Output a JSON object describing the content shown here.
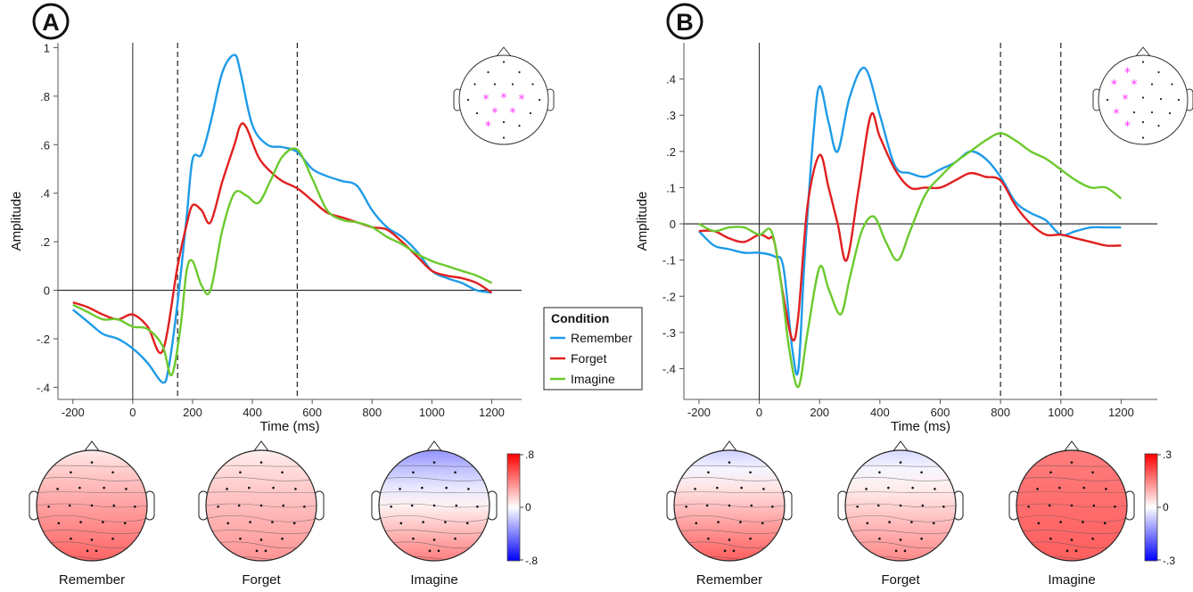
{
  "chart_data": [
    {
      "panel": "A",
      "type": "line",
      "xlabel": "Time (ms)",
      "ylabel": "Amplitude",
      "xlim": [
        -250,
        1300
      ],
      "ylim": [
        -0.45,
        1.02
      ],
      "xticks": [
        -200,
        0,
        200,
        400,
        600,
        800,
        1000,
        1200
      ],
      "xtick_labels": [
        "-200",
        "0",
        "200",
        "400",
        "600",
        "800",
        "1000",
        "1200"
      ],
      "yticks": [
        -0.4,
        -0.2,
        0,
        0.2,
        0.4,
        0.6,
        0.8,
        1
      ],
      "ytick_labels": [
        "-.4",
        "-.2",
        "0",
        ".2",
        ".4",
        ".6",
        ".8",
        "1"
      ],
      "window_ms": [
        150,
        550
      ],
      "series": [
        {
          "name": "Remember",
          "color": "#1E9BE8",
          "x": [
            -200,
            -150,
            -100,
            -50,
            0,
            50,
            100,
            120,
            150,
            180,
            200,
            230,
            260,
            300,
            340,
            360,
            400,
            450,
            500,
            550,
            600,
            650,
            700,
            750,
            800,
            850,
            900,
            950,
            1000,
            1050,
            1100,
            1150,
            1200
          ],
          "values": [
            -0.08,
            -0.13,
            -0.18,
            -0.2,
            -0.24,
            -0.3,
            -0.38,
            -0.32,
            -0.05,
            0.3,
            0.54,
            0.56,
            0.69,
            0.9,
            0.97,
            0.9,
            0.68,
            0.6,
            0.59,
            0.57,
            0.5,
            0.47,
            0.45,
            0.43,
            0.33,
            0.26,
            0.22,
            0.16,
            0.08,
            0.05,
            0.03,
            0.0,
            -0.01
          ]
        },
        {
          "name": "Forget",
          "color": "#E02020",
          "x": [
            -200,
            -150,
            -100,
            -50,
            0,
            50,
            100,
            150,
            180,
            200,
            230,
            260,
            300,
            340,
            360,
            380,
            420,
            460,
            500,
            550,
            600,
            650,
            700,
            750,
            800,
            850,
            900,
            950,
            1000,
            1050,
            1100,
            1150,
            1200
          ],
          "values": [
            -0.05,
            -0.07,
            -0.1,
            -0.12,
            -0.1,
            -0.15,
            -0.25,
            0.1,
            0.27,
            0.35,
            0.33,
            0.28,
            0.45,
            0.6,
            0.68,
            0.67,
            0.55,
            0.49,
            0.45,
            0.42,
            0.37,
            0.32,
            0.3,
            0.28,
            0.26,
            0.25,
            0.2,
            0.14,
            0.08,
            0.06,
            0.05,
            0.03,
            -0.01
          ]
        },
        {
          "name": "Imagine",
          "color": "#6CC92E",
          "x": [
            -200,
            -150,
            -100,
            -50,
            0,
            50,
            100,
            130,
            160,
            180,
            200,
            230,
            260,
            300,
            340,
            380,
            420,
            460,
            500,
            550,
            600,
            650,
            700,
            750,
            800,
            850,
            900,
            950,
            1000,
            1050,
            1100,
            1150,
            1200
          ],
          "values": [
            -0.06,
            -0.09,
            -0.12,
            -0.12,
            -0.15,
            -0.16,
            -0.23,
            -0.35,
            -0.15,
            0.08,
            0.12,
            0.02,
            0.0,
            0.25,
            0.4,
            0.39,
            0.36,
            0.45,
            0.55,
            0.58,
            0.46,
            0.33,
            0.29,
            0.28,
            0.26,
            0.22,
            0.19,
            0.15,
            0.12,
            0.1,
            0.08,
            0.06,
            0.03
          ]
        }
      ]
    },
    {
      "panel": "B",
      "type": "line",
      "xlabel": "Time (ms)",
      "ylabel": "Amplitude",
      "xlim": [
        -250,
        1320
      ],
      "ylim": [
        -0.485,
        0.5
      ],
      "xticks": [
        -200,
        0,
        200,
        400,
        600,
        800,
        1000,
        1200
      ],
      "xtick_labels": [
        "-200",
        "0",
        "200",
        "400",
        "600",
        "800",
        "1000",
        "1200"
      ],
      "yticks": [
        -0.4,
        -0.3,
        -0.2,
        -0.1,
        0,
        0.1,
        0.2,
        0.3,
        0.4
      ],
      "ytick_labels": [
        "-.4",
        "-.3",
        "-.2",
        "-.1",
        "0",
        ".1",
        ".2",
        ".3",
        ".4"
      ],
      "window_ms": [
        800,
        1000
      ],
      "series": [
        {
          "name": "Remember",
          "color": "#1E9BE8",
          "x": [
            -200,
            -150,
            -100,
            -50,
            0,
            50,
            80,
            110,
            130,
            150,
            180,
            200,
            230,
            260,
            300,
            350,
            400,
            450,
            500,
            550,
            600,
            650,
            700,
            750,
            800,
            850,
            900,
            950,
            1000,
            1050,
            1100,
            1150,
            1200
          ],
          "values": [
            -0.02,
            -0.06,
            -0.07,
            -0.08,
            -0.08,
            -0.09,
            -0.12,
            -0.35,
            -0.4,
            -0.1,
            0.25,
            0.38,
            0.28,
            0.2,
            0.35,
            0.43,
            0.3,
            0.16,
            0.14,
            0.13,
            0.15,
            0.17,
            0.2,
            0.18,
            0.13,
            0.06,
            0.03,
            0.01,
            -0.03,
            -0.02,
            -0.01,
            -0.01,
            -0.01
          ]
        },
        {
          "name": "Forget",
          "color": "#E02020",
          "x": [
            -200,
            -150,
            -100,
            -50,
            0,
            30,
            50,
            80,
            110,
            130,
            160,
            200,
            230,
            260,
            290,
            330,
            370,
            400,
            450,
            500,
            550,
            600,
            650,
            700,
            750,
            800,
            850,
            900,
            950,
            1000,
            1050,
            1100,
            1150,
            1200
          ],
          "values": [
            -0.02,
            -0.02,
            -0.04,
            -0.05,
            -0.03,
            -0.04,
            -0.05,
            -0.2,
            -0.32,
            -0.25,
            0.05,
            0.19,
            0.1,
            0.0,
            -0.1,
            0.1,
            0.3,
            0.24,
            0.15,
            0.1,
            0.1,
            0.1,
            0.12,
            0.14,
            0.13,
            0.12,
            0.05,
            0.0,
            -0.03,
            -0.03,
            -0.04,
            -0.05,
            -0.06,
            -0.06
          ]
        },
        {
          "name": "Imagine",
          "color": "#6CC92E",
          "x": [
            -200,
            -150,
            -100,
            -50,
            0,
            40,
            70,
            100,
            130,
            160,
            200,
            230,
            270,
            300,
            340,
            380,
            420,
            460,
            500,
            550,
            600,
            650,
            700,
            750,
            800,
            850,
            900,
            950,
            1000,
            1050,
            1100,
            1150,
            1200
          ],
          "values": [
            0.0,
            -0.02,
            -0.01,
            -0.01,
            -0.03,
            -0.02,
            -0.15,
            -0.35,
            -0.45,
            -0.3,
            -0.12,
            -0.18,
            -0.25,
            -0.15,
            -0.02,
            0.02,
            -0.05,
            -0.1,
            -0.02,
            0.08,
            0.13,
            0.17,
            0.2,
            0.23,
            0.25,
            0.23,
            0.2,
            0.18,
            0.15,
            0.12,
            0.1,
            0.1,
            0.07
          ]
        }
      ]
    }
  ],
  "legend": {
    "title": "Condition",
    "items": [
      {
        "label": "Remember",
        "color": "#1E9BE8"
      },
      {
        "label": "Forget",
        "color": "#E02020"
      },
      {
        "label": "Imagine",
        "color": "#6CC92E"
      }
    ]
  },
  "panels": [
    {
      "letter": "A",
      "topomaps": [
        {
          "label": "Remember",
          "front_value": 0.1,
          "back_value": 0.72
        },
        {
          "label": "Forget",
          "front_value": 0.08,
          "back_value": 0.5
        },
        {
          "label": "Imagine",
          "front_value": -0.55,
          "back_value": 0.6
        }
      ],
      "colorbar": {
        "max_label": ".8",
        "mid_label": "0",
        "min_label": "-.8"
      }
    },
    {
      "letter": "B",
      "topomaps": [
        {
          "label": "Remember",
          "front_value": -0.25,
          "back_value": 0.75
        },
        {
          "label": "Forget",
          "front_value": -0.2,
          "back_value": 0.55
        },
        {
          "label": "Imagine",
          "front_value": 0.6,
          "back_value": 0.75
        }
      ],
      "colorbar": {
        "max_label": ".3",
        "mid_label": "0",
        "min_label": "-.3"
      }
    }
  ],
  "colors": {
    "positive": "#FF0000",
    "negative": "#0000FF",
    "highlight_electrode": "#FF33FF"
  }
}
